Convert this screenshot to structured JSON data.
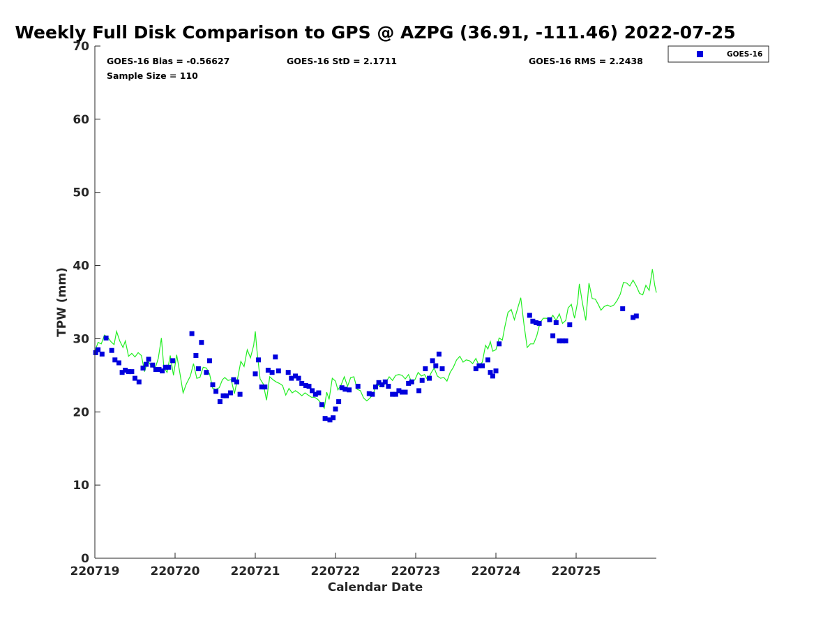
{
  "chart_data": {
    "type": "scatter",
    "title": "Weekly Full Disk Comparison to GPS @ AZPG (36.91, -111.46) 2022-07-25",
    "xlabel": "Calendar Date",
    "ylabel": "TPW (mm)",
    "xlim": [
      0,
      7
    ],
    "ylim": [
      0,
      70
    ],
    "x_tick_values": [
      0,
      1,
      2,
      3,
      4,
      5,
      6
    ],
    "x_tick_labels": [
      "220719",
      "220720",
      "220721",
      "220722",
      "220723",
      "220724",
      "220725"
    ],
    "y_ticks": [
      0,
      10,
      20,
      30,
      40,
      50,
      60,
      70
    ],
    "stats": {
      "bias": "GOES-16 Bias = -0.56627",
      "std": "GOES-16 StD = 2.1711",
      "rms": "GOES-16 RMS = 2.2438",
      "sample": "Sample Size = 110"
    },
    "legend": {
      "label": "GOES-16",
      "placement": "outside-top-right"
    },
    "colors": {
      "goes16": "#0000dd",
      "gps": "#22ee22",
      "axis": "#262626"
    },
    "series": [
      {
        "name": "GOES-16",
        "marker": "square",
        "points": [
          [
            0.01,
            28.1
          ],
          [
            0.04,
            28.5
          ],
          [
            0.09,
            27.9
          ],
          [
            0.14,
            30.1
          ],
          [
            0.21,
            28.4
          ],
          [
            0.25,
            27.1
          ],
          [
            0.3,
            26.7
          ],
          [
            0.34,
            25.4
          ],
          [
            0.38,
            25.7
          ],
          [
            0.42,
            25.5
          ],
          [
            0.46,
            25.5
          ],
          [
            0.5,
            24.6
          ],
          [
            0.55,
            24.1
          ],
          [
            0.6,
            26.0
          ],
          [
            0.64,
            26.5
          ],
          [
            0.67,
            27.2
          ],
          [
            0.72,
            26.4
          ],
          [
            0.76,
            25.8
          ],
          [
            0.8,
            25.8
          ],
          [
            0.84,
            25.6
          ],
          [
            0.88,
            26.1
          ],
          [
            0.92,
            26.1
          ],
          [
            0.97,
            27.0
          ],
          [
            1.21,
            30.7
          ],
          [
            1.26,
            27.7
          ],
          [
            1.29,
            25.9
          ],
          [
            1.33,
            29.5
          ],
          [
            1.39,
            25.4
          ],
          [
            1.43,
            27.0
          ],
          [
            1.47,
            23.7
          ],
          [
            1.51,
            22.8
          ],
          [
            1.56,
            21.4
          ],
          [
            1.6,
            22.2
          ],
          [
            1.64,
            22.2
          ],
          [
            1.69,
            22.6
          ],
          [
            1.73,
            24.4
          ],
          [
            1.77,
            24.1
          ],
          [
            1.81,
            22.4
          ],
          [
            2.0,
            25.2
          ],
          [
            2.04,
            27.1
          ],
          [
            2.08,
            23.4
          ],
          [
            2.12,
            23.4
          ],
          [
            2.16,
            25.7
          ],
          [
            2.21,
            25.4
          ],
          [
            2.25,
            27.5
          ],
          [
            2.29,
            25.6
          ],
          [
            2.41,
            25.4
          ],
          [
            2.45,
            24.6
          ],
          [
            2.5,
            24.9
          ],
          [
            2.54,
            24.6
          ],
          [
            2.58,
            23.9
          ],
          [
            2.63,
            23.6
          ],
          [
            2.67,
            23.5
          ],
          [
            2.71,
            22.9
          ],
          [
            2.75,
            22.4
          ],
          [
            2.79,
            22.6
          ],
          [
            2.83,
            21.0
          ],
          [
            2.87,
            19.1
          ],
          [
            2.93,
            18.9
          ],
          [
            2.97,
            19.2
          ],
          [
            3.0,
            20.4
          ],
          [
            3.04,
            21.4
          ],
          [
            3.08,
            23.3
          ],
          [
            3.12,
            23.1
          ],
          [
            3.17,
            23.0
          ],
          [
            3.28,
            23.5
          ],
          [
            3.42,
            22.5
          ],
          [
            3.46,
            22.4
          ],
          [
            3.5,
            23.4
          ],
          [
            3.54,
            24.0
          ],
          [
            3.58,
            23.7
          ],
          [
            3.62,
            24.1
          ],
          [
            3.66,
            23.5
          ],
          [
            3.71,
            22.4
          ],
          [
            3.75,
            22.4
          ],
          [
            3.79,
            22.9
          ],
          [
            3.83,
            22.7
          ],
          [
            3.87,
            22.7
          ],
          [
            3.91,
            23.9
          ],
          [
            3.95,
            24.1
          ],
          [
            4.04,
            22.9
          ],
          [
            4.08,
            24.3
          ],
          [
            4.12,
            25.9
          ],
          [
            4.17,
            24.6
          ],
          [
            4.21,
            27.0
          ],
          [
            4.25,
            26.3
          ],
          [
            4.29,
            27.9
          ],
          [
            4.33,
            25.9
          ],
          [
            4.75,
            25.9
          ],
          [
            4.79,
            26.3
          ],
          [
            4.83,
            26.3
          ],
          [
            4.9,
            27.1
          ],
          [
            4.93,
            25.4
          ],
          [
            4.96,
            24.9
          ],
          [
            5.0,
            25.6
          ],
          [
            5.04,
            29.3
          ],
          [
            5.42,
            33.2
          ],
          [
            5.46,
            32.4
          ],
          [
            5.5,
            32.2
          ],
          [
            5.54,
            32.1
          ],
          [
            5.67,
            32.6
          ],
          [
            5.71,
            30.4
          ],
          [
            5.75,
            32.2
          ],
          [
            5.79,
            29.7
          ],
          [
            5.83,
            29.7
          ],
          [
            5.87,
            29.7
          ],
          [
            5.92,
            31.9
          ],
          [
            6.58,
            34.1
          ],
          [
            6.71,
            32.9
          ],
          [
            6.75,
            33.1
          ]
        ]
      },
      {
        "name": "GPS",
        "marker": "line",
        "points": [
          [
            0.0,
            28.3
          ],
          [
            0.04,
            29.5
          ],
          [
            0.08,
            29.3
          ],
          [
            0.12,
            30.5
          ],
          [
            0.16,
            30.2
          ],
          [
            0.2,
            29.6
          ],
          [
            0.24,
            29.2
          ],
          [
            0.27,
            31.0
          ],
          [
            0.31,
            29.7
          ],
          [
            0.35,
            28.8
          ],
          [
            0.38,
            29.7
          ],
          [
            0.42,
            27.6
          ],
          [
            0.46,
            28.0
          ],
          [
            0.5,
            27.5
          ],
          [
            0.54,
            28.1
          ],
          [
            0.58,
            27.7
          ],
          [
            0.62,
            25.5
          ],
          [
            0.66,
            27.0
          ],
          [
            0.7,
            26.3
          ],
          [
            0.75,
            25.9
          ],
          [
            0.79,
            27.3
          ],
          [
            0.83,
            30.1
          ],
          [
            0.86,
            26.1
          ],
          [
            0.9,
            25.4
          ],
          [
            0.94,
            27.7
          ],
          [
            0.98,
            25.0
          ],
          [
            1.02,
            27.8
          ],
          [
            1.06,
            25.3
          ],
          [
            1.1,
            22.6
          ],
          [
            1.14,
            23.8
          ],
          [
            1.19,
            24.9
          ],
          [
            1.23,
            26.6
          ],
          [
            1.27,
            24.6
          ],
          [
            1.31,
            24.7
          ],
          [
            1.35,
            26.1
          ],
          [
            1.39,
            26.0
          ],
          [
            1.43,
            25.2
          ],
          [
            1.47,
            23.2
          ],
          [
            1.51,
            23.1
          ],
          [
            1.55,
            23.3
          ],
          [
            1.59,
            24.4
          ],
          [
            1.62,
            24.7
          ],
          [
            1.66,
            24.3
          ],
          [
            1.7,
            24.4
          ],
          [
            1.74,
            22.5
          ],
          [
            1.78,
            24.6
          ],
          [
            1.82,
            26.9
          ],
          [
            1.86,
            26.2
          ],
          [
            1.9,
            28.5
          ],
          [
            1.94,
            27.4
          ],
          [
            1.98,
            29.1
          ],
          [
            2.0,
            31.0
          ],
          [
            2.02,
            28.5
          ],
          [
            2.06,
            24.5
          ],
          [
            2.1,
            23.8
          ],
          [
            2.14,
            21.6
          ],
          [
            2.18,
            24.8
          ],
          [
            2.22,
            24.4
          ],
          [
            2.26,
            24.1
          ],
          [
            2.3,
            23.9
          ],
          [
            2.34,
            23.6
          ],
          [
            2.38,
            22.3
          ],
          [
            2.42,
            23.2
          ],
          [
            2.46,
            22.6
          ],
          [
            2.5,
            22.9
          ],
          [
            2.54,
            22.6
          ],
          [
            2.58,
            22.2
          ],
          [
            2.62,
            22.6
          ],
          [
            2.66,
            22.3
          ],
          [
            2.7,
            22.0
          ],
          [
            2.74,
            22.0
          ],
          [
            2.78,
            21.7
          ],
          [
            2.82,
            21.2
          ],
          [
            2.86,
            20.5
          ],
          [
            2.89,
            22.7
          ],
          [
            2.92,
            21.7
          ],
          [
            2.96,
            24.6
          ],
          [
            3.0,
            24.2
          ],
          [
            3.03,
            23.0
          ],
          [
            3.07,
            23.7
          ],
          [
            3.11,
            24.8
          ],
          [
            3.15,
            23.5
          ],
          [
            3.19,
            24.7
          ],
          [
            3.23,
            24.8
          ],
          [
            3.27,
            23.1
          ],
          [
            3.31,
            22.9
          ],
          [
            3.35,
            21.9
          ],
          [
            3.39,
            21.5
          ],
          [
            3.43,
            21.9
          ],
          [
            3.47,
            22.4
          ],
          [
            3.51,
            23.8
          ],
          [
            3.55,
            23.5
          ],
          [
            3.59,
            23.4
          ],
          [
            3.63,
            24.1
          ],
          [
            3.67,
            24.8
          ],
          [
            3.71,
            24.3
          ],
          [
            3.75,
            25.0
          ],
          [
            3.79,
            25.1
          ],
          [
            3.83,
            25.0
          ],
          [
            3.87,
            24.5
          ],
          [
            3.91,
            25.1
          ],
          [
            3.95,
            24.0
          ],
          [
            3.99,
            24.4
          ],
          [
            4.03,
            25.4
          ],
          [
            4.07,
            24.9
          ],
          [
            4.11,
            25.1
          ],
          [
            4.15,
            24.3
          ],
          [
            4.19,
            25.3
          ],
          [
            4.23,
            26.0
          ],
          [
            4.27,
            24.9
          ],
          [
            4.31,
            24.6
          ],
          [
            4.35,
            24.7
          ],
          [
            4.39,
            24.2
          ],
          [
            4.43,
            25.4
          ],
          [
            4.47,
            26.1
          ],
          [
            4.51,
            27.1
          ],
          [
            4.55,
            27.6
          ],
          [
            4.59,
            26.8
          ],
          [
            4.63,
            27.1
          ],
          [
            4.67,
            27.0
          ],
          [
            4.71,
            26.6
          ],
          [
            4.75,
            27.3
          ],
          [
            4.79,
            26.3
          ],
          [
            4.83,
            26.8
          ],
          [
            4.87,
            29.1
          ],
          [
            4.9,
            28.6
          ],
          [
            4.93,
            29.6
          ],
          [
            4.96,
            28.3
          ],
          [
            5.0,
            28.5
          ],
          [
            5.04,
            30.1
          ],
          [
            5.08,
            29.8
          ],
          [
            5.11,
            31.6
          ],
          [
            5.15,
            33.6
          ],
          [
            5.19,
            34.0
          ],
          [
            5.23,
            32.6
          ],
          [
            5.27,
            34.1
          ],
          [
            5.31,
            35.6
          ],
          [
            5.35,
            31.9
          ],
          [
            5.39,
            28.8
          ],
          [
            5.43,
            29.3
          ],
          [
            5.47,
            29.3
          ],
          [
            5.51,
            30.4
          ],
          [
            5.55,
            32.2
          ],
          [
            5.59,
            32.8
          ],
          [
            5.63,
            32.8
          ],
          [
            5.67,
            32.5
          ],
          [
            5.71,
            33.2
          ],
          [
            5.75,
            32.5
          ],
          [
            5.79,
            33.4
          ],
          [
            5.83,
            32.1
          ],
          [
            5.87,
            32.5
          ],
          [
            5.9,
            34.2
          ],
          [
            5.94,
            34.7
          ],
          [
            5.98,
            32.8
          ],
          [
            6.02,
            35.1
          ],
          [
            6.04,
            37.5
          ],
          [
            6.08,
            34.8
          ],
          [
            6.12,
            32.5
          ],
          [
            6.16,
            37.6
          ],
          [
            6.2,
            35.5
          ],
          [
            6.24,
            35.4
          ],
          [
            6.28,
            34.6
          ],
          [
            6.31,
            33.9
          ],
          [
            6.35,
            34.4
          ],
          [
            6.39,
            34.6
          ],
          [
            6.43,
            34.4
          ],
          [
            6.47,
            34.6
          ],
          [
            6.51,
            35.2
          ],
          [
            6.55,
            36.1
          ],
          [
            6.59,
            37.7
          ],
          [
            6.63,
            37.6
          ],
          [
            6.67,
            37.2
          ],
          [
            6.71,
            38.0
          ],
          [
            6.75,
            37.2
          ],
          [
            6.79,
            36.2
          ],
          [
            6.83,
            36.0
          ],
          [
            6.87,
            37.3
          ],
          [
            6.91,
            36.6
          ],
          [
            6.95,
            39.5
          ],
          [
            6.98,
            37.3
          ],
          [
            7.0,
            36.3
          ]
        ]
      }
    ]
  }
}
